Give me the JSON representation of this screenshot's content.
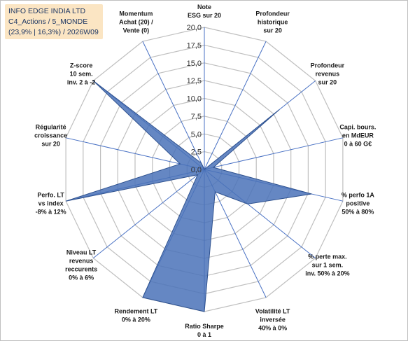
{
  "header": {
    "line1": "INFO EDGE INDIA LTD",
    "line2": "C4_Actions / 5_MONDE",
    "line3": "(23,9% | 16,3%) / 2026W09"
  },
  "colors": {
    "fill": "#4a72b8",
    "stroke": "#2f528f",
    "grid": "#bfbfbf",
    "spoke": "#4a72c4",
    "header_bg": "#fbe5c3"
  },
  "chart_data": {
    "type": "radar",
    "rmax": 20,
    "ticks": [
      "0,0",
      "2,5",
      "5,0",
      "7,5",
      "10,0",
      "12,5",
      "15,0",
      "17,5",
      "20,0"
    ],
    "axes": [
      {
        "label": [
          "Note",
          "ESG sur 20"
        ],
        "value": 0
      },
      {
        "label": [
          "Profondeur",
          "historique",
          "sur 20"
        ],
        "value": 0
      },
      {
        "label": [
          "Profondeur",
          "revenus",
          "sur 20"
        ],
        "value": 13.5
      },
      {
        "label": [
          "Capi. bours.",
          "en MdEUR",
          "0 à 60 G€"
        ],
        "value": 1.3
      },
      {
        "label": [
          "% perfo 1A",
          "positive",
          "50% à 80%"
        ],
        "value": 15.5
      },
      {
        "label": [
          "% perte max.",
          "sur 1 sem.",
          "inv. 50% à 20%"
        ],
        "value": 7.8
      },
      {
        "label": [
          "Volatilité LT",
          "inversée",
          "40% à 0%"
        ],
        "value": 3.5
      },
      {
        "label": [
          "Ratio Sharpe",
          "0 à 1"
        ],
        "value": 20
      },
      {
        "label": [
          "Rendement LT",
          "0% à 20%"
        ],
        "value": 20
      },
      {
        "label": [
          "Niveau LT",
          "revenus",
          "reccurents",
          "0% à 6%"
        ],
        "value": 1.2
      },
      {
        "label": [
          "Perfo. LT",
          "vs index",
          "-8% à 12%"
        ],
        "value": 20
      },
      {
        "label": [
          "Régularité",
          "croissance",
          "sur 20"
        ],
        "value": 3.5
      },
      {
        "label": [
          "Z-score",
          "10 sem.",
          "inv. 2 à -2"
        ],
        "value": 20
      },
      {
        "label": [
          "Momentum",
          "Achat (20) /",
          "Vente (0)"
        ],
        "value": 1.0
      }
    ]
  }
}
